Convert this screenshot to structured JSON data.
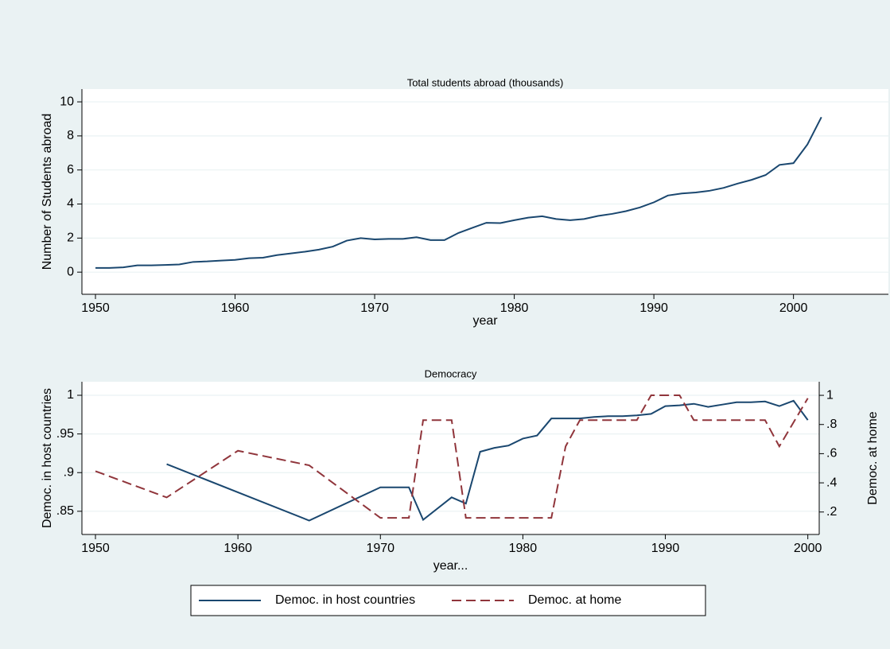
{
  "chart_data": [
    {
      "type": "line",
      "title": "Total students abroad (thousands)",
      "x_label": "year",
      "y_label": "Number of Students abroad",
      "xlim": [
        1949.03,
        2006.8
      ],
      "xticks": [
        1950,
        1960,
        1970,
        1980,
        1990,
        2000
      ],
      "ylim": [
        -1.3,
        10.75
      ],
      "yticks": [
        0,
        2,
        4,
        6,
        8,
        10
      ],
      "grid": true,
      "x": [
        1950,
        1951,
        1952,
        1953,
        1954,
        1955,
        1956,
        1957,
        1958,
        1959,
        1960,
        1961,
        1962,
        1963,
        1964,
        1965,
        1966,
        1967,
        1968,
        1969,
        1970,
        1971,
        1972,
        1973,
        1974,
        1975,
        1976,
        1977,
        1978,
        1979,
        1980,
        1981,
        1982,
        1983,
        1984,
        1985,
        1986,
        1987,
        1988,
        1989,
        1990,
        1991,
        1992,
        1993,
        1994,
        1995,
        1996,
        1997,
        1998,
        1999,
        2000,
        2001,
        2002
      ],
      "series": [
        {
          "name": "Total students abroad",
          "color": "#1a476f",
          "values": [
            0.25,
            0.25,
            0.28,
            0.4,
            0.4,
            0.42,
            0.45,
            0.6,
            0.63,
            0.68,
            0.72,
            0.82,
            0.85,
            1.0,
            1.1,
            1.2,
            1.32,
            1.5,
            1.85,
            2.0,
            1.92,
            1.95,
            1.95,
            2.05,
            1.88,
            1.88,
            2.3,
            2.6,
            2.9,
            2.88,
            3.05,
            3.2,
            3.28,
            3.12,
            3.05,
            3.12,
            3.3,
            3.42,
            3.58,
            3.8,
            4.1,
            4.5,
            4.62,
            4.68,
            4.78,
            4.95,
            5.2,
            5.42,
            5.7,
            6.3,
            6.4,
            7.5,
            9.1
          ]
        }
      ]
    },
    {
      "type": "line",
      "title": "Democracy",
      "x_label": "year...",
      "y_label": "Democ. in host countries",
      "y2_label": "Democ. at home",
      "xlim": [
        1949.05,
        2000.8
      ],
      "xticks": [
        1950,
        1960,
        1970,
        1980,
        1990,
        2000
      ],
      "ylim": [
        0.82,
        1.0175
      ],
      "yticks": [
        {
          "value": 0.85,
          "label": ".85"
        },
        {
          "value": 0.9,
          "label": ".9"
        },
        {
          "value": 0.95,
          "label": ".95"
        },
        1
      ],
      "y2lim": [
        0.046,
        1.093
      ],
      "y2ticks": [
        {
          "value": 0.2,
          "label": ".2"
        },
        {
          "value": 0.4,
          "label": ".4"
        },
        {
          "value": 0.6,
          "label": ".6"
        },
        {
          "value": 0.8,
          "label": ".8"
        },
        1
      ],
      "grid": true,
      "legend": "bottom",
      "series": [
        {
          "name": "Democ. in host countries",
          "color": "#1a476f",
          "x": [
            1955,
            1965,
            1970,
            1971,
            1972,
            1973,
            1975,
            1976,
            1977,
            1978,
            1979,
            1980,
            1981,
            1982,
            1983,
            1984,
            1985,
            1986,
            1987,
            1988,
            1989,
            1990,
            1991,
            1992,
            1993,
            1994,
            1995,
            1996,
            1997,
            1998,
            1999,
            2000
          ],
          "values": [
            0.911,
            0.838,
            0.881,
            0.881,
            0.881,
            0.839,
            0.868,
            0.86,
            0.927,
            0.932,
            0.935,
            0.944,
            0.948,
            0.97,
            0.97,
            0.97,
            0.972,
            0.973,
            0.973,
            0.974,
            0.976,
            0.986,
            0.987,
            0.989,
            0.985,
            0.988,
            0.991,
            0.991,
            0.992,
            0.986,
            0.993,
            0.968
          ]
        },
        {
          "name": "Democ. at home",
          "color": "#90353b",
          "axis": "y2",
          "dash": true,
          "x": [
            1950,
            1955,
            1960,
            1965,
            1970,
            1971,
            1972,
            1973,
            1974,
            1975,
            1976,
            1977,
            1978,
            1979,
            1980,
            1981,
            1982,
            1983,
            1984,
            1985,
            1986,
            1987,
            1988,
            1989,
            1990,
            1991,
            1992,
            1993,
            1994,
            1995,
            1996,
            1997,
            1998,
            2000
          ],
          "values": [
            0.48,
            0.3,
            0.62,
            0.52,
            0.16,
            0.16,
            0.16,
            0.83,
            0.83,
            0.83,
            0.16,
            0.16,
            0.16,
            0.16,
            0.16,
            0.16,
            0.16,
            0.65,
            0.83,
            0.83,
            0.83,
            0.83,
            0.83,
            1.0,
            1.0,
            1.0,
            0.83,
            0.83,
            0.83,
            0.83,
            0.83,
            0.83,
            0.65,
            0.98
          ]
        }
      ]
    }
  ]
}
